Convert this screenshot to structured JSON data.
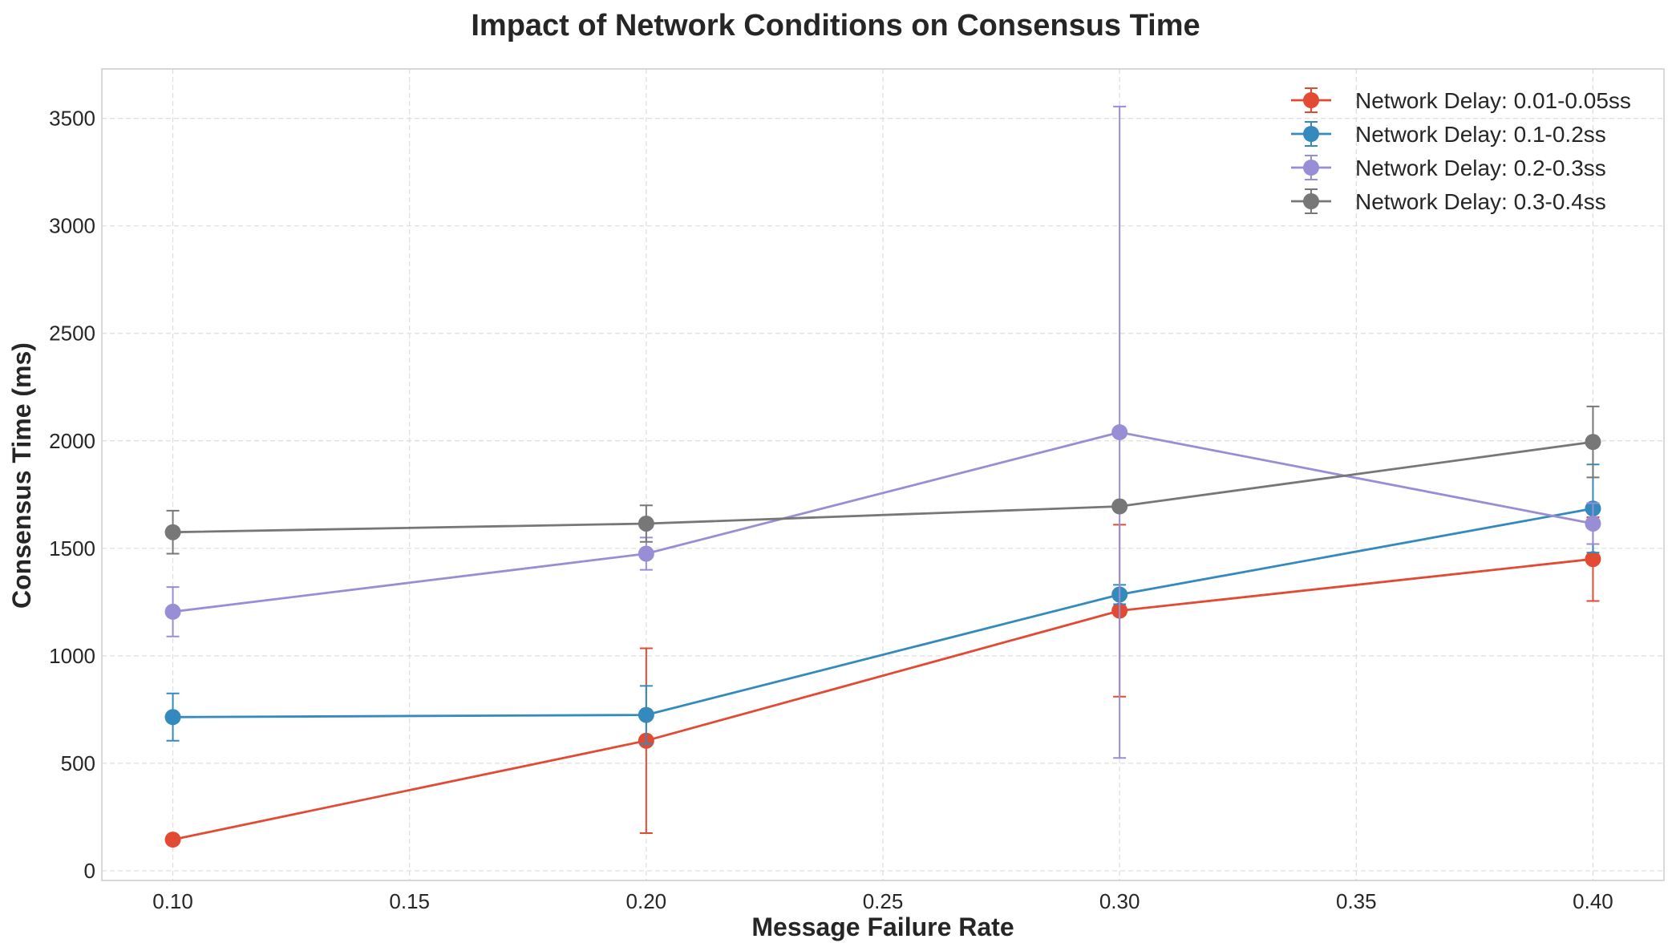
{
  "chart_data": {
    "type": "line",
    "title": "Impact of Network Conditions on Consensus Time",
    "xlabel": "Message Failure Rate",
    "ylabel": "Consensus Time (ms)",
    "xlim": [
      0.085,
      0.415
    ],
    "ylim": [
      -45,
      3730
    ],
    "x_ticks": [
      0.1,
      0.15,
      0.2,
      0.25,
      0.3,
      0.35,
      0.4
    ],
    "x_tick_labels": [
      "0.10",
      "0.15",
      "0.20",
      "0.25",
      "0.30",
      "0.35",
      "0.40"
    ],
    "y_ticks": [
      0,
      500,
      1000,
      1500,
      2000,
      2500,
      3000,
      3500
    ],
    "y_tick_labels": [
      "0",
      "500",
      "1000",
      "1500",
      "2000",
      "2500",
      "3000",
      "3500"
    ],
    "grid": true,
    "legend_position": "top-right",
    "x": [
      0.1,
      0.2,
      0.3,
      0.4
    ],
    "series": [
      {
        "name": "Network Delay: 0.01-0.05ss",
        "color": "#E24A33",
        "values": [
          145,
          605,
          1210,
          1450
        ],
        "errors": [
          0,
          430,
          400,
          195
        ]
      },
      {
        "name": "Network Delay: 0.1-0.2ss",
        "color": "#348ABD",
        "values": [
          715,
          725,
          1285,
          1685
        ],
        "errors": [
          110,
          135,
          45,
          205
        ]
      },
      {
        "name": "Network Delay: 0.2-0.3ss",
        "color": "#988ED5",
        "values": [
          1205,
          1475,
          2040,
          1615
        ],
        "errors": [
          115,
          75,
          1515,
          95
        ]
      },
      {
        "name": "Network Delay: 0.3-0.4ss",
        "color": "#777777",
        "values": [
          1575,
          1615,
          1695,
          1995
        ],
        "errors": [
          100,
          85,
          0,
          165
        ]
      }
    ]
  }
}
